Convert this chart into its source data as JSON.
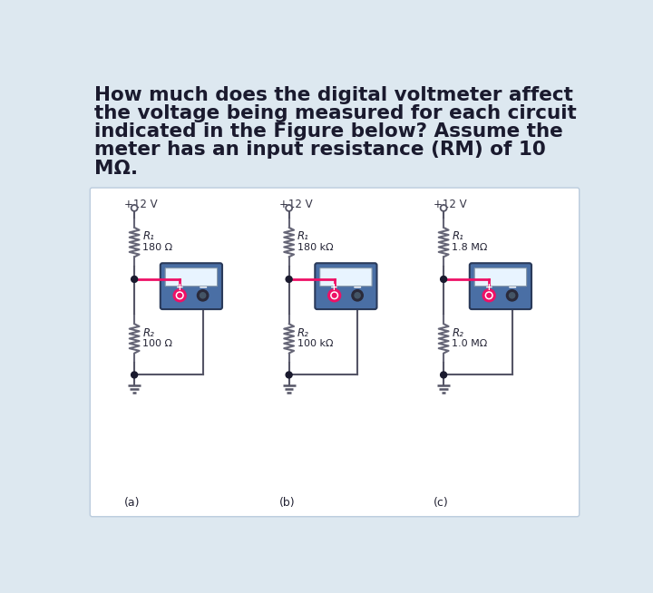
{
  "bg_color": "#dde8f0",
  "title_text_lines": [
    "How much does the digital voltmeter affect",
    "the voltage being measured for each circuit",
    "indicated in the Figure below? Assume the",
    "meter has an input resistance (RM) of 10",
    "MΩ."
  ],
  "title_fontsize": 15.5,
  "circuit_bg": "#ffffff",
  "circuits": [
    {
      "label": "(a)",
      "voltage": "+12 V",
      "R1_label": "R₁",
      "R1_val": "180 Ω",
      "R2_label": "R₂",
      "R2_val": "100 Ω"
    },
    {
      "label": "(b)",
      "voltage": "+12 V",
      "R1_label": "R₁",
      "R1_val": "180 kΩ",
      "R2_label": "R₂",
      "R2_val": "100 kΩ"
    },
    {
      "label": "(c)",
      "voltage": "+12 V",
      "R1_label": "R₁",
      "R1_val": "1.8 MΩ",
      "R2_label": "R₂",
      "R2_val": "1.0 MΩ"
    }
  ],
  "meter_body_color": "#4a6fa5",
  "meter_body_color2": "#3a5f95",
  "meter_screen_color": "#e8f4ff",
  "meter_pink_color": "#ee1166",
  "meter_dark_color": "#1a1a2e",
  "wire_color": "#555566",
  "node_color": "#1a1a2e",
  "pink_wire_color": "#ee1166",
  "ground_color": "#555566",
  "resistor_color": "#666677",
  "label_color": "#222233",
  "volt_label_color": "#333344"
}
